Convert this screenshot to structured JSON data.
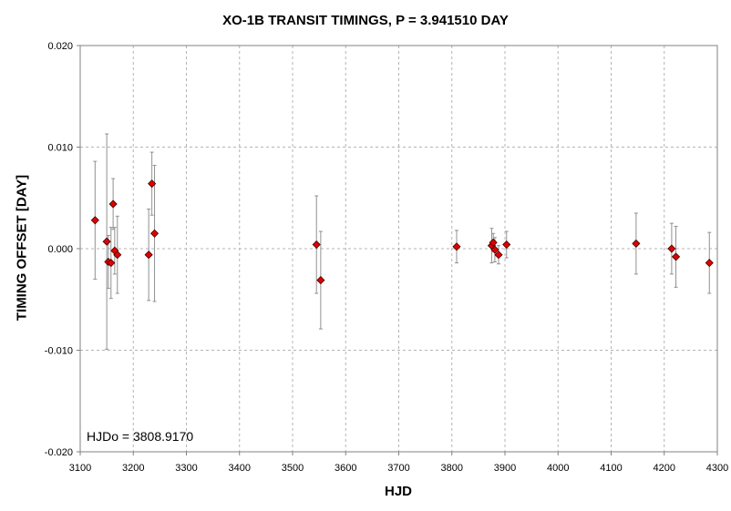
{
  "chart_data": {
    "type": "scatter",
    "title": "XO-1B TRANSIT TIMINGS, P = 3.941510 DAY",
    "xlabel": "HJD",
    "ylabel": "TIMING OFFSET [DAY]",
    "xlim": [
      3100,
      4300
    ],
    "ylim": [
      -0.02,
      0.02
    ],
    "x_ticks": [
      "3100",
      "3200",
      "3300",
      "3400",
      "3500",
      "3600",
      "3700",
      "3800",
      "3900",
      "4000",
      "4100",
      "4200",
      "4300"
    ],
    "y_ticks": [
      "0.020",
      "0.010",
      "0.000",
      "-0.010",
      "-0.020"
    ],
    "grid": true,
    "annotation": "HJDo = 3808.9170",
    "marker_color": "#e00000",
    "errorbar_color": "#909090",
    "series": [
      {
        "points": [
          {
            "x": 3128,
            "y": 0.0028,
            "err": 0.0058
          },
          {
            "x": 3150,
            "y": 0.0007,
            "err": 0.0106
          },
          {
            "x": 3153,
            "y": -0.0013,
            "err": 0.0026
          },
          {
            "x": 3158,
            "y": -0.0014,
            "err": 0.0035
          },
          {
            "x": 3162,
            "y": 0.0044,
            "err": 0.0025
          },
          {
            "x": 3165,
            "y": -0.0002,
            "err": 0.0023
          },
          {
            "x": 3170,
            "y": -0.0006,
            "err": 0.0038
          },
          {
            "x": 3229,
            "y": -0.0006,
            "err": 0.0045
          },
          {
            "x": 3235,
            "y": 0.0064,
            "err": 0.0031
          },
          {
            "x": 3240,
            "y": 0.0015,
            "err": 0.0067
          },
          {
            "x": 3545,
            "y": 0.0004,
            "err": 0.0048
          },
          {
            "x": 3553,
            "y": -0.0031,
            "err": 0.0048
          },
          {
            "x": 3809,
            "y": 0.0002,
            "err": 0.0016
          },
          {
            "x": 3875,
            "y": 0.0003,
            "err": 0.0017
          },
          {
            "x": 3878,
            "y": 0.0006,
            "err": 0.0009
          },
          {
            "x": 3881,
            "y": -0.0001,
            "err": 0.0012
          },
          {
            "x": 3888,
            "y": -0.0006,
            "err": 0.0009
          },
          {
            "x": 3903,
            "y": 0.0004,
            "err": 0.0013
          },
          {
            "x": 4147,
            "y": 0.0005,
            "err": 0.003
          },
          {
            "x": 4214,
            "y": 0.0,
            "err": 0.0025
          },
          {
            "x": 4222,
            "y": -0.0008,
            "err": 0.003
          },
          {
            "x": 4285,
            "y": -0.0014,
            "err": 0.003
          }
        ]
      }
    ]
  }
}
